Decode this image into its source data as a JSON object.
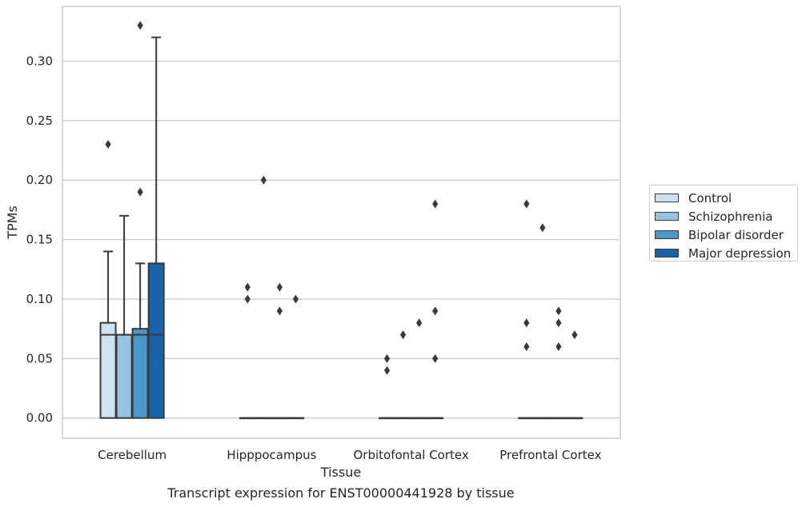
{
  "chart_data": {
    "type": "box",
    "title": "Transcript expression for ENST00000441928 by tissue",
    "xlabel": "Tissue",
    "ylabel": "TPMs",
    "ylim": [
      -0.017,
      0.346
    ],
    "yticks": [
      "0.00",
      "0.05",
      "0.10",
      "0.15",
      "0.20",
      "0.25",
      "0.30"
    ],
    "grid": true,
    "legend_position": "right",
    "categories": [
      "Cerebellum",
      "Hipppocampus",
      "Orbitofontal Cortex",
      "Prefrontal Cortex"
    ],
    "series": [
      {
        "name": "Control",
        "color": "#d0e1f2",
        "boxes": [
          {
            "q1": 0.0,
            "median": 0.07,
            "q3": 0.08,
            "whisker_low": 0.0,
            "whisker_high": 0.14,
            "outliers": [
              0.23
            ]
          },
          {
            "q1": 0.0,
            "median": 0.0,
            "q3": 0.0,
            "whisker_low": 0.0,
            "whisker_high": 0.0,
            "outliers": [
              0.1,
              0.11
            ]
          },
          {
            "q1": 0.0,
            "median": 0.0,
            "q3": 0.0,
            "whisker_low": 0.0,
            "whisker_high": 0.0,
            "outliers": [
              0.04,
              0.05
            ]
          },
          {
            "q1": 0.0,
            "median": 0.0,
            "q3": 0.0,
            "whisker_low": 0.0,
            "whisker_high": 0.0,
            "outliers": [
              0.06,
              0.08,
              0.18
            ]
          }
        ]
      },
      {
        "name": "Schizophrenia",
        "color": "#94c4df",
        "boxes": [
          {
            "q1": 0.0,
            "median": 0.07,
            "q3": 0.07,
            "whisker_low": 0.0,
            "whisker_high": 0.17,
            "outliers": []
          },
          {
            "q1": 0.0,
            "median": 0.0,
            "q3": 0.0,
            "whisker_low": 0.0,
            "whisker_high": 0.0,
            "outliers": [
              0.2
            ]
          },
          {
            "q1": 0.0,
            "median": 0.0,
            "q3": 0.0,
            "whisker_low": 0.0,
            "whisker_high": 0.0,
            "outliers": [
              0.07
            ]
          },
          {
            "q1": 0.0,
            "median": 0.0,
            "q3": 0.0,
            "whisker_low": 0.0,
            "whisker_high": 0.0,
            "outliers": [
              0.16
            ]
          }
        ]
      },
      {
        "name": "Bipolar disorder",
        "color": "#4a98c9",
        "boxes": [
          {
            "q1": 0.0,
            "median": 0.07,
            "q3": 0.075,
            "whisker_low": 0.0,
            "whisker_high": 0.13,
            "outliers": [
              0.19,
              0.33
            ]
          },
          {
            "q1": 0.0,
            "median": 0.0,
            "q3": 0.0,
            "whisker_low": 0.0,
            "whisker_high": 0.0,
            "outliers": [
              0.09,
              0.11
            ]
          },
          {
            "q1": 0.0,
            "median": 0.0,
            "q3": 0.0,
            "whisker_low": 0.0,
            "whisker_high": 0.0,
            "outliers": [
              0.08
            ]
          },
          {
            "q1": 0.0,
            "median": 0.0,
            "q3": 0.0,
            "whisker_low": 0.0,
            "whisker_high": 0.0,
            "outliers": [
              0.06,
              0.08,
              0.09
            ]
          }
        ]
      },
      {
        "name": "Major depression",
        "color": "#1764ab",
        "boxes": [
          {
            "q1": 0.0,
            "median": 0.07,
            "q3": 0.13,
            "whisker_low": 0.0,
            "whisker_high": 0.32,
            "outliers": []
          },
          {
            "q1": 0.0,
            "median": 0.0,
            "q3": 0.0,
            "whisker_low": 0.0,
            "whisker_high": 0.0,
            "outliers": [
              0.1
            ]
          },
          {
            "q1": 0.0,
            "median": 0.0,
            "q3": 0.0,
            "whisker_low": 0.0,
            "whisker_high": 0.0,
            "outliers": [
              0.05,
              0.09,
              0.18
            ]
          },
          {
            "q1": 0.0,
            "median": 0.0,
            "q3": 0.0,
            "whisker_low": 0.0,
            "whisker_high": 0.0,
            "outliers": [
              0.07
            ]
          }
        ]
      }
    ]
  }
}
